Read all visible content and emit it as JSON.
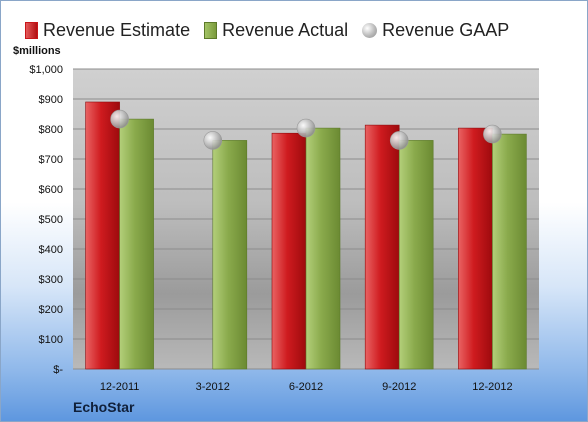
{
  "legend": {
    "estimate": "Revenue Estimate",
    "actual": "Revenue Actual",
    "gaap": "Revenue GAAP"
  },
  "unit_label": "$millions",
  "company": "EchoStar",
  "colors": {
    "estimate": "#c8161a",
    "actual": "#8aaa4c",
    "gaap": "#b5b5b5"
  },
  "chart_data": {
    "type": "bar",
    "title": "",
    "ylabel": "$millions",
    "xlabel": "",
    "categories": [
      "12-2011",
      "3-2012",
      "6-2012",
      "9-2012",
      "12-2012"
    ],
    "series": [
      {
        "name": "Revenue Estimate",
        "values": [
          890,
          null,
          786,
          813,
          803
        ]
      },
      {
        "name": "Revenue Actual",
        "values": [
          833,
          762,
          803,
          762,
          783
        ]
      },
      {
        "name": "Revenue GAAP",
        "values": [
          833,
          762,
          803,
          762,
          783
        ]
      }
    ],
    "ylim": [
      0,
      1000
    ],
    "yticks": [
      "$-",
      "$100",
      "$200",
      "$300",
      "$400",
      "$500",
      "$600",
      "$700",
      "$800",
      "$900",
      "$1,000"
    ],
    "grid": true,
    "legend_position": "top"
  }
}
